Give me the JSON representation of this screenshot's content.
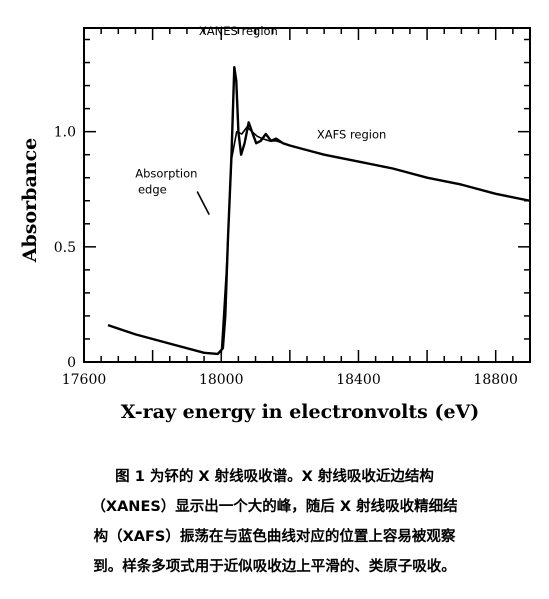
{
  "chart_data": {
    "type": "line",
    "xlabel": "X-ray energy in electronvolts (eV)",
    "ylabel": "Absorbance",
    "xlim": [
      17600,
      18900
    ],
    "ylim": [
      0,
      1.45
    ],
    "x_ticks": [
      17600,
      18000,
      18400,
      18800
    ],
    "x_tick_labels": [
      "17600",
      "18000",
      "18400",
      "18800"
    ],
    "y_ticks": [
      0,
      0.5,
      1.0
    ],
    "y_tick_labels": [
      "0",
      "0.5",
      "1.0"
    ],
    "grid": false,
    "annotations": [
      {
        "text": "XANES region",
        "x": 18050,
        "y": 1.42
      },
      {
        "text": "XAFS region",
        "x": 18380,
        "y": 0.97
      },
      {
        "text": "Absorption edge",
        "x": 17840,
        "y": 0.8
      }
    ],
    "series": [
      {
        "name": "",
        "color": "#000000",
        "x": [
          17670,
          17750,
          17850,
          17950,
          17990,
          18005,
          18012,
          18020,
          18030,
          18038,
          18044,
          18050,
          18058,
          18068,
          18080,
          18092,
          18102,
          18115,
          18130,
          18145,
          18160,
          18180,
          18200,
          18250,
          18300,
          18400,
          18500,
          18600,
          18700,
          18800,
          18900
        ],
        "y": [
          0.16,
          0.12,
          0.08,
          0.04,
          0.035,
          0.06,
          0.2,
          0.55,
          0.9,
          1.28,
          1.22,
          1.0,
          0.9,
          0.95,
          1.04,
          0.99,
          0.95,
          0.96,
          0.99,
          0.96,
          0.97,
          0.95,
          0.94,
          0.92,
          0.9,
          0.87,
          0.84,
          0.8,
          0.77,
          0.73,
          0.7
        ]
      },
      {
        "name": "",
        "color": "#000000",
        "x": [
          18000,
          18015,
          18030,
          18045,
          18060,
          18075,
          18090,
          18105,
          18120,
          18140,
          18160,
          18200,
          18250
        ],
        "y": [
          0.03,
          0.4,
          0.88,
          1.0,
          0.99,
          1.02,
          1.0,
          0.98,
          0.97,
          0.96,
          0.96,
          0.94,
          0.92
        ]
      },
      {
        "name": "",
        "color": "#000000",
        "x": [
          17930,
          17965
        ],
        "y": [
          0.74,
          0.64
        ]
      }
    ]
  },
  "caption": {
    "lines": [
      "图 1 为钚的 X 射线吸收谱。X 射线吸收近边结构",
      "（XANES）显示出一个大的峰，随后 X 射线吸收精细结",
      "构（XAFS）振荡在与蓝色曲线对应的位置上容易被观察",
      "到。样条多项式用于近似吸收边上平滑的、类原子吸收。"
    ]
  }
}
